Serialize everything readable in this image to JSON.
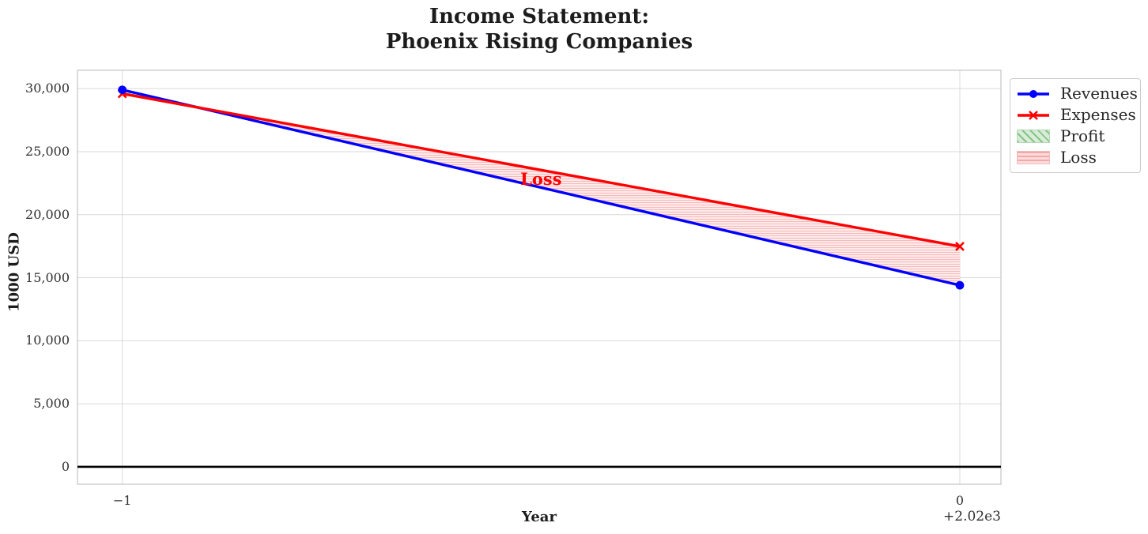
{
  "title": {
    "lines": [
      "Income Statement:",
      "Phoenix Rising Companies"
    ]
  },
  "axes": {
    "xlabel": "Year",
    "ylabel": "1000 USD",
    "x_offset_text": "+2.02e3"
  },
  "legend": {
    "items": [
      {
        "label": "Revenues",
        "type": "line",
        "color": "#0000ff",
        "marker": "circle"
      },
      {
        "label": "Expenses",
        "type": "line",
        "color": "#ff0000",
        "marker": "x"
      },
      {
        "label": "Profit",
        "type": "patch",
        "fill": "#d9ecd9",
        "stripe": "#85c585",
        "border": "#b5d6b5",
        "hatch": "diagonal"
      },
      {
        "label": "Loss",
        "type": "patch",
        "fill": "#fcdcdc",
        "stripe": "#f5a8a8",
        "border": "#f0bcbc",
        "hatch": "horizontal"
      }
    ]
  },
  "chart_data": {
    "type": "line",
    "title": "Income Statement: Phoenix Rising Companies",
    "xlabel": "Year",
    "ylabel": "1000 USD",
    "x_years": [
      2019,
      2020
    ],
    "x_offset_positions": [
      -1,
      0
    ],
    "xtick_labels": [
      "−1",
      "0"
    ],
    "x_offset_text": "+2.02e3",
    "series": [
      {
        "name": "Revenues",
        "color": "#0000ff",
        "marker": "circle",
        "values": [
          29900,
          14400
        ]
      },
      {
        "name": "Expenses",
        "color": "#ff0000",
        "marker": "x",
        "values": [
          29600,
          17480
        ]
      }
    ],
    "fills": [
      {
        "name": "Profit",
        "where": "revenues > expenses",
        "base_color": "#008000",
        "hatch": "diagonal"
      },
      {
        "name": "Loss",
        "where": "expenses > revenues",
        "base_color": "#ff0000",
        "hatch": "horizontal"
      }
    ],
    "annotations": [
      {
        "text": "Loss",
        "color": "#ff0000",
        "x": -0.5,
        "y": 22800
      }
    ],
    "yticks": [
      0,
      5000,
      10000,
      15000,
      20000,
      25000,
      30000
    ],
    "ytick_labels": [
      "0",
      "5,000",
      "10,000",
      "15,000",
      "20,000",
      "25,000",
      "30,000"
    ],
    "ylim": [
      -1380,
      31450
    ],
    "xlim": [
      -1.0535,
      0.0491
    ],
    "grid": true,
    "zero_line": true,
    "legend_position": "outside-upper-right",
    "grid_color": "#d9d9d9",
    "spine_color": "#c8c8c8"
  }
}
